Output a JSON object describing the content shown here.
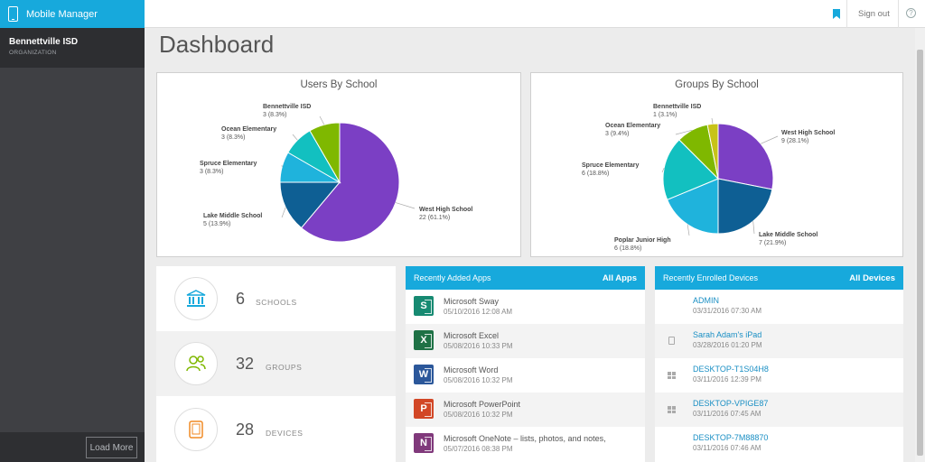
{
  "app": {
    "title": "Mobile Manager",
    "org_name": "Bennettville ISD",
    "org_label": "ORGANIZATION",
    "load_more": "Load More"
  },
  "topbar": {
    "sign_out": "Sign out",
    "help": "?"
  },
  "page": {
    "title": "Dashboard"
  },
  "colors": {
    "accent": "#17a9dc",
    "sidebar": "#3f4044",
    "purple": "#7b3fc4",
    "darkblue": "#0e5f94",
    "cyan": "#1fb3dc",
    "teal": "#12c0c0",
    "green": "#7fb800",
    "yellow": "#c7c318"
  },
  "users_chart": {
    "title": "Users By School",
    "slices": [
      {
        "label": "West High School",
        "sub": "22 (61.1%)",
        "value": 22,
        "color": "#7b3fc4"
      },
      {
        "label": "Lake Middle School",
        "sub": "5 (13.9%)",
        "value": 5,
        "color": "#0e5f94"
      },
      {
        "label": "Spruce Elementary",
        "sub": "3 (8.3%)",
        "value": 3,
        "color": "#1fb3dc"
      },
      {
        "label": "Ocean Elementary",
        "sub": "3 (8.3%)",
        "value": 3,
        "color": "#12c0c0"
      },
      {
        "label": "Bennettville ISD",
        "sub": "3 (8.3%)",
        "value": 3,
        "color": "#7fb800"
      }
    ]
  },
  "groups_chart": {
    "title": "Groups By School",
    "slices": [
      {
        "label": "West High School",
        "sub": "9 (28.1%)",
        "value": 9,
        "color": "#7b3fc4"
      },
      {
        "label": "Lake Middle School",
        "sub": "7 (21.9%)",
        "value": 7,
        "color": "#0e5f94"
      },
      {
        "label": "Poplar Junior High",
        "sub": "6 (18.8%)",
        "value": 6,
        "color": "#1fb3dc"
      },
      {
        "label": "Spruce Elementary",
        "sub": "6 (18.8%)",
        "value": 6,
        "color": "#12c0c0"
      },
      {
        "label": "Ocean Elementary",
        "sub": "3 (9.4%)",
        "value": 3,
        "color": "#7fb800"
      },
      {
        "label": "Bennettville ISD",
        "sub": "1 (3.1%)",
        "value": 1,
        "color": "#c7c318"
      }
    ]
  },
  "stats": [
    {
      "value": "6",
      "label": "SCHOOLS",
      "icon": "school-building-icon"
    },
    {
      "value": "32",
      "label": "GROUPS",
      "icon": "groups-people-icon"
    },
    {
      "value": "28",
      "label": "DEVICES",
      "icon": "tablet-device-icon"
    }
  ],
  "apps": {
    "title": "Recently Added Apps",
    "link": "All Apps",
    "items": [
      {
        "name": "Microsoft Sway",
        "date": "05/10/2016 12:08 AM",
        "letter": "S",
        "color": "#178a72"
      },
      {
        "name": "Microsoft Excel",
        "date": "05/08/2016 10:33 PM",
        "letter": "X",
        "color": "#1e7145"
      },
      {
        "name": "Microsoft Word",
        "date": "05/08/2016 10:32 PM",
        "letter": "W",
        "color": "#2b579a"
      },
      {
        "name": "Microsoft PowerPoint",
        "date": "05/08/2016 10:32 PM",
        "letter": "P",
        "color": "#d24726"
      },
      {
        "name": "Microsoft OneNote – lists, photos, and notes,",
        "date": "05/07/2016 08:38 PM",
        "letter": "N",
        "color": "#80397b"
      }
    ]
  },
  "devices": {
    "title": "Recently Enrolled Devices",
    "link": "All Devices",
    "items": [
      {
        "name": "ADMIN",
        "date": "03/31/2016 07:30 AM",
        "icon": "none"
      },
      {
        "name": "Sarah Adam's iPad",
        "date": "03/28/2016 01:20 PM",
        "icon": "tablet"
      },
      {
        "name": "DESKTOP-T1S04H8",
        "date": "03/11/2016 12:39 PM",
        "icon": "windows"
      },
      {
        "name": "DESKTOP-VPIGE87",
        "date": "03/11/2016 07:45 AM",
        "icon": "windows"
      },
      {
        "name": "DESKTOP-7M88870",
        "date": "03/11/2016 07:46 AM",
        "icon": "none"
      }
    ]
  }
}
